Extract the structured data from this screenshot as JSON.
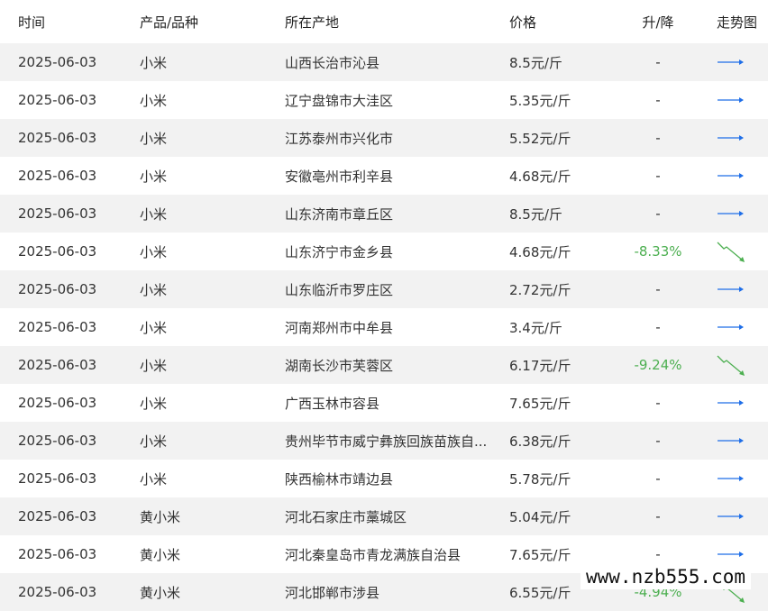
{
  "header": {
    "time": "时间",
    "product": "产品/品种",
    "location": "所在产地",
    "price": "价格",
    "change": "升/降",
    "trend": "走势图"
  },
  "colors": {
    "flat": "#1e6ee8",
    "down": "#4caf50",
    "stripe": "#f2f2f2"
  },
  "rows": [
    {
      "time": "2025-06-03",
      "product": "小米",
      "location": "山西长治市沁县",
      "price": "8.5元/斤",
      "change": "-",
      "trend": "flat"
    },
    {
      "time": "2025-06-03",
      "product": "小米",
      "location": "辽宁盘锦市大洼区",
      "price": "5.35元/斤",
      "change": "-",
      "trend": "flat"
    },
    {
      "time": "2025-06-03",
      "product": "小米",
      "location": "江苏泰州市兴化市",
      "price": "5.52元/斤",
      "change": "-",
      "trend": "flat"
    },
    {
      "time": "2025-06-03",
      "product": "小米",
      "location": "安徽亳州市利辛县",
      "price": "4.68元/斤",
      "change": "-",
      "trend": "flat"
    },
    {
      "time": "2025-06-03",
      "product": "小米",
      "location": "山东济南市章丘区",
      "price": "8.5元/斤",
      "change": "-",
      "trend": "flat"
    },
    {
      "time": "2025-06-03",
      "product": "小米",
      "location": "山东济宁市金乡县",
      "price": "4.68元/斤",
      "change": "-8.33%",
      "trend": "down"
    },
    {
      "time": "2025-06-03",
      "product": "小米",
      "location": "山东临沂市罗庄区",
      "price": "2.72元/斤",
      "change": "-",
      "trend": "flat"
    },
    {
      "time": "2025-06-03",
      "product": "小米",
      "location": "河南郑州市中牟县",
      "price": "3.4元/斤",
      "change": "-",
      "trend": "flat"
    },
    {
      "time": "2025-06-03",
      "product": "小米",
      "location": "湖南长沙市芙蓉区",
      "price": "6.17元/斤",
      "change": "-9.24%",
      "trend": "down"
    },
    {
      "time": "2025-06-03",
      "product": "小米",
      "location": "广西玉林市容县",
      "price": "7.65元/斤",
      "change": "-",
      "trend": "flat"
    },
    {
      "time": "2025-06-03",
      "product": "小米",
      "location": "贵州毕节市威宁彝族回族苗族自...",
      "price": "6.38元/斤",
      "change": "-",
      "trend": "flat"
    },
    {
      "time": "2025-06-03",
      "product": "小米",
      "location": "陕西榆林市靖边县",
      "price": "5.78元/斤",
      "change": "-",
      "trend": "flat"
    },
    {
      "time": "2025-06-03",
      "product": "黄小米",
      "location": "河北石家庄市藁城区",
      "price": "5.04元/斤",
      "change": "-",
      "trend": "flat"
    },
    {
      "time": "2025-06-03",
      "product": "黄小米",
      "location": "河北秦皇岛市青龙满族自治县",
      "price": "7.65元/斤",
      "change": "-",
      "trend": "flat"
    },
    {
      "time": "2025-06-03",
      "product": "黄小米",
      "location": "河北邯郸市涉县",
      "price": "6.55元/斤",
      "change": "-4.94%",
      "trend": "down"
    }
  ],
  "watermark": "www.nzb555.com"
}
